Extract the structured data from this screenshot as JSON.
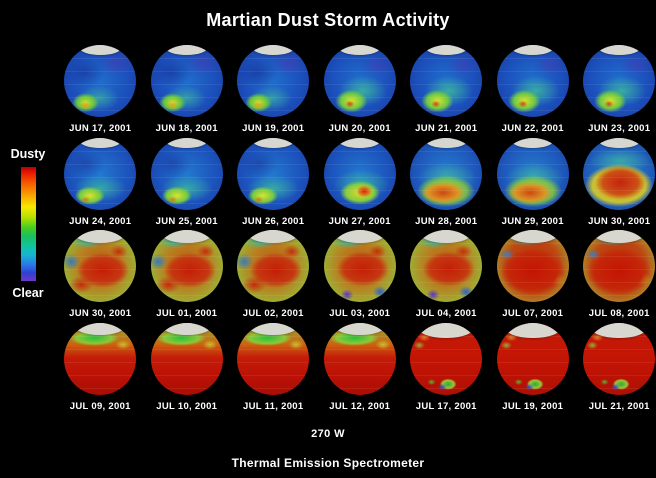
{
  "title": "Martian Dust Storm Activity",
  "legend": {
    "top_label": "Dusty",
    "bottom_label": "Clear",
    "gradient_colors": [
      "#b40000",
      "#f85800",
      "#f8e800",
      "#48cc20",
      "#10c4a0",
      "#2878e8",
      "#7038c8"
    ]
  },
  "grid": {
    "rows": [
      {
        "cells": [
          {
            "date": "JUN 17, 2001",
            "stage": "s1"
          },
          {
            "date": "JUN 18, 2001",
            "stage": "s1"
          },
          {
            "date": "JUN 19, 2001",
            "stage": "s1"
          },
          {
            "date": "JUN 20, 2001",
            "stage": "s1b"
          },
          {
            "date": "JUN 21, 2001",
            "stage": "s1b"
          },
          {
            "date": "JUN 22, 2001",
            "stage": "s1b"
          },
          {
            "date": "JUN 23, 2001",
            "stage": "s1b"
          }
        ]
      },
      {
        "cells": [
          {
            "date": "JUN 24, 2001",
            "stage": "s2"
          },
          {
            "date": "JUN 25, 2001",
            "stage": "s2"
          },
          {
            "date": "JUN 26, 2001",
            "stage": "s2"
          },
          {
            "date": "JUN 27, 2001",
            "stage": "s2b"
          },
          {
            "date": "JUN 28, 2001",
            "stage": "s2c"
          },
          {
            "date": "JUN 29, 2001",
            "stage": "s2c"
          },
          {
            "date": "JUN 30, 2001",
            "stage": "s2d"
          }
        ]
      },
      {
        "cells": [
          {
            "date": "JUN 30, 2001",
            "stage": "s3"
          },
          {
            "date": "JUL 01, 2001",
            "stage": "s3"
          },
          {
            "date": "JUL 02, 2001",
            "stage": "s3"
          },
          {
            "date": "JUL 03, 2001",
            "stage": "s3b"
          },
          {
            "date": "JUL 04, 2001",
            "stage": "s3b"
          },
          {
            "date": "JUL 07, 2001",
            "stage": "s3c"
          },
          {
            "date": "JUL 08, 2001",
            "stage": "s3c"
          }
        ]
      },
      {
        "cells": [
          {
            "date": "JUL 09, 2001",
            "stage": "s4"
          },
          {
            "date": "JUL 10, 2001",
            "stage": "s4"
          },
          {
            "date": "JUL 11, 2001",
            "stage": "s4"
          },
          {
            "date": "JUL 12, 2001",
            "stage": "s4"
          },
          {
            "date": "JUL 17, 2001",
            "stage": "s4b"
          },
          {
            "date": "JUL 19, 2001",
            "stage": "s4b"
          },
          {
            "date": "JUL 21, 2001",
            "stage": "s4b"
          }
        ]
      }
    ]
  },
  "footer": {
    "longitude": "270 W",
    "instrument": "Thermal Emission Spectrometer"
  },
  "chart_data": {
    "type": "heatmap",
    "title": "Martian Dust Storm Activity",
    "x": [
      "JUN 17, 2001",
      "JUN 18, 2001",
      "JUN 19, 2001",
      "JUN 20, 2001",
      "JUN 21, 2001",
      "JUN 22, 2001",
      "JUN 23, 2001",
      "JUN 24, 2001",
      "JUN 25, 2001",
      "JUN 26, 2001",
      "JUN 27, 2001",
      "JUN 28, 2001",
      "JUN 29, 2001",
      "JUN 30, 2001",
      "JUN 30, 2001",
      "JUL 01, 2001",
      "JUL 02, 2001",
      "JUL 03, 2001",
      "JUL 04, 2001",
      "JUL 07, 2001",
      "JUL 08, 2001",
      "JUL 09, 2001",
      "JUL 10, 2001",
      "JUL 11, 2001",
      "JUL 12, 2001",
      "JUL 17, 2001",
      "JUL 19, 2001",
      "JUL 21, 2001"
    ],
    "values": [
      0.15,
      0.15,
      0.15,
      0.18,
      0.2,
      0.25,
      0.28,
      0.3,
      0.3,
      0.32,
      0.4,
      0.5,
      0.55,
      0.65,
      0.7,
      0.75,
      0.78,
      0.75,
      0.72,
      0.8,
      0.82,
      0.85,
      0.85,
      0.88,
      0.9,
      0.97,
      0.97,
      0.96
    ],
    "value_meaning": "relative dust opacity per daily Mars globe, estimated from frame colors (0 = clear/blue, 1 = dusty/red)",
    "layout": "7 columns x 4 rows of daily Mars disk maps, chronological left-to-right, top-to-bottom",
    "colorbar": {
      "top": "Dusty",
      "bottom": "Clear",
      "colors": [
        "#b40000",
        "#f85800",
        "#f8e800",
        "#48cc20",
        "#10c4a0",
        "#2878e8",
        "#7038c8"
      ]
    },
    "annotations": [
      "270 W",
      "Thermal Emission Spectrometer"
    ]
  }
}
